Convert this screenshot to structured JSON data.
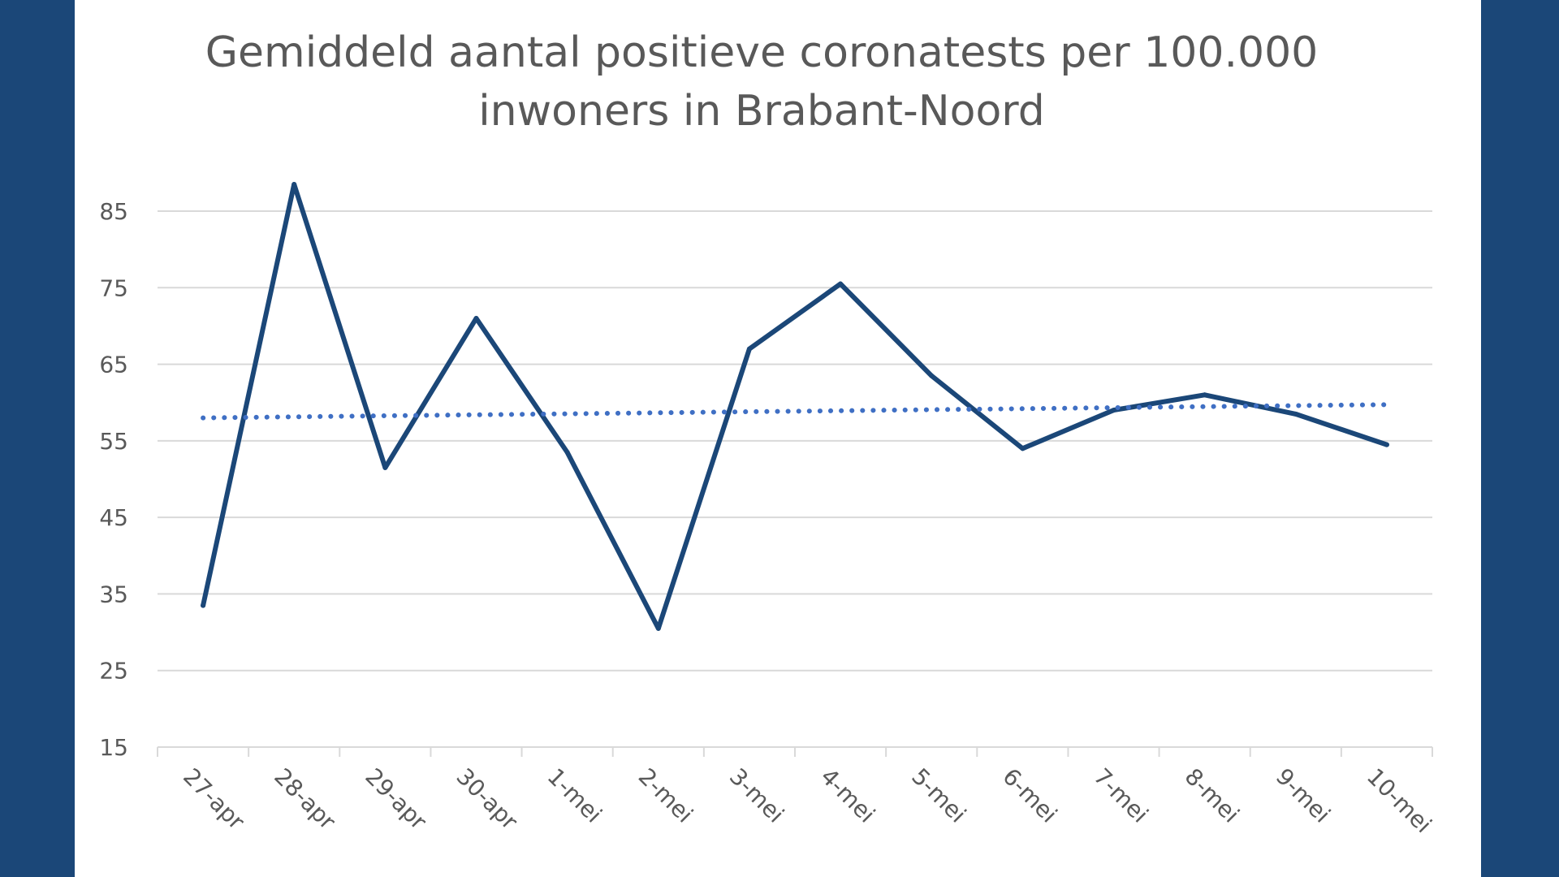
{
  "chart_data": {
    "type": "line",
    "title_lines": [
      "Gemiddeld aantal positieve coronatests per 100.000",
      "inwoners in Brabant-Noord"
    ],
    "categories": [
      "27-apr",
      "28-apr",
      "29-apr",
      "30-apr",
      "1-mei",
      "2-mei",
      "3-mei",
      "4-mei",
      "5-mei",
      "6-mei",
      "7-mei",
      "8-mei",
      "9-mei",
      "10-mei"
    ],
    "series": [
      {
        "values": [
          33.5,
          88.5,
          51.5,
          71,
          53.5,
          30.5,
          67,
          75.5,
          63.5,
          54,
          59,
          61,
          58.5,
          54.5
        ],
        "color": "#1b4778",
        "style": "solid"
      },
      {
        "trendline": "linear",
        "values": [
          58,
          58.13,
          58.27,
          58.4,
          58.53,
          58.67,
          58.8,
          58.93,
          59.07,
          59.2,
          59.33,
          59.47,
          59.6,
          59.73
        ],
        "color": "#3f6fc4",
        "style": "dotted"
      }
    ],
    "y_ticks": [
      15,
      25,
      35,
      45,
      55,
      65,
      75,
      85
    ],
    "ylim": [
      15,
      90
    ],
    "grid": true,
    "legend": "none",
    "colors": {
      "background": "#1b4778",
      "panel": "#ffffff",
      "grid": "#d9d9d9",
      "text": "#595959"
    }
  }
}
